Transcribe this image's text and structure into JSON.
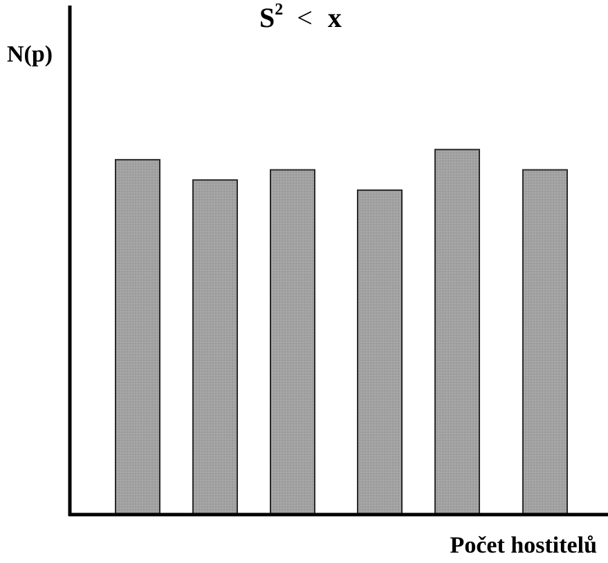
{
  "chart_data": {
    "type": "bar",
    "title": {
      "base": "S",
      "exponent": "2",
      "operator": "<",
      "rhs": "x"
    },
    "ylabel": "N(p)",
    "xlabel": "Počet hostitelů",
    "categories": [
      "",
      "",
      "",
      "",
      "",
      ""
    ],
    "values": [
      0.7,
      0.66,
      0.68,
      0.64,
      0.72,
      0.68
    ],
    "ylim": [
      0,
      1
    ],
    "grid": false,
    "legend": "none",
    "colors": {
      "bar_fill": "#a2a2a2",
      "bar_stroke": "#2a2a2a",
      "axis": "#000000"
    }
  }
}
